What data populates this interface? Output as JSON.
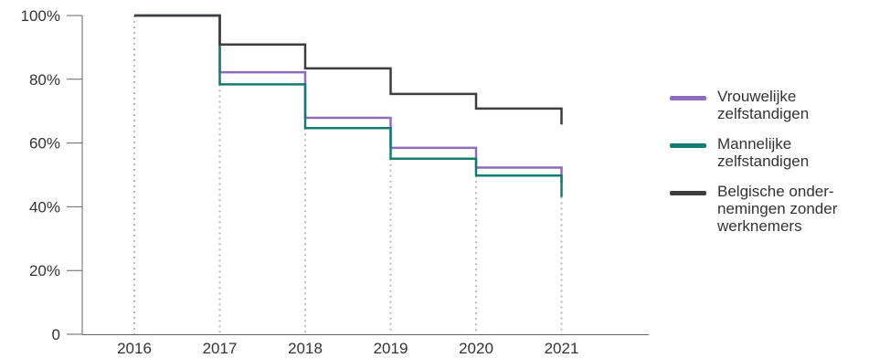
{
  "chart_data": {
    "type": "line",
    "step": true,
    "x": [
      "2016",
      "2017",
      "2018",
      "2019",
      "2020",
      "2021"
    ],
    "series": [
      {
        "name": "Vrouwelijke zelfstandigen",
        "color": "#8f6bbb",
        "values": [
          100,
          82.2,
          67.9,
          58.5,
          52.3,
          47.5
        ]
      },
      {
        "name": "Mannelijke zelfstandigen",
        "color": "#137b72",
        "values": [
          100,
          78.4,
          64.7,
          55.1,
          49.8,
          43.1
        ]
      },
      {
        "name": "Belgische onder-nemingen zonder werknemers",
        "color": "#3d3d3d",
        "values": [
          100,
          90.9,
          83.4,
          75.4,
          70.8,
          65.8
        ]
      }
    ],
    "yticks": [
      0,
      20,
      40,
      60,
      80,
      100
    ],
    "ytick_labels": [
      "0",
      "20%",
      "40%",
      "60%",
      "80%",
      "100%"
    ],
    "ylim": [
      0,
      100
    ],
    "grid": false,
    "legend_position": "right",
    "title": "",
    "xlabel": "",
    "ylabel": ""
  },
  "legend": [
    {
      "label": "Vrouwelijke zelfstandigen",
      "color": "#8f6bbb"
    },
    {
      "label": "Mannelijke zelfstandigen",
      "color": "#137b72"
    },
    {
      "label": "Belgische onder-nemingen zonder werknemers",
      "color": "#3d3d3d"
    }
  ]
}
